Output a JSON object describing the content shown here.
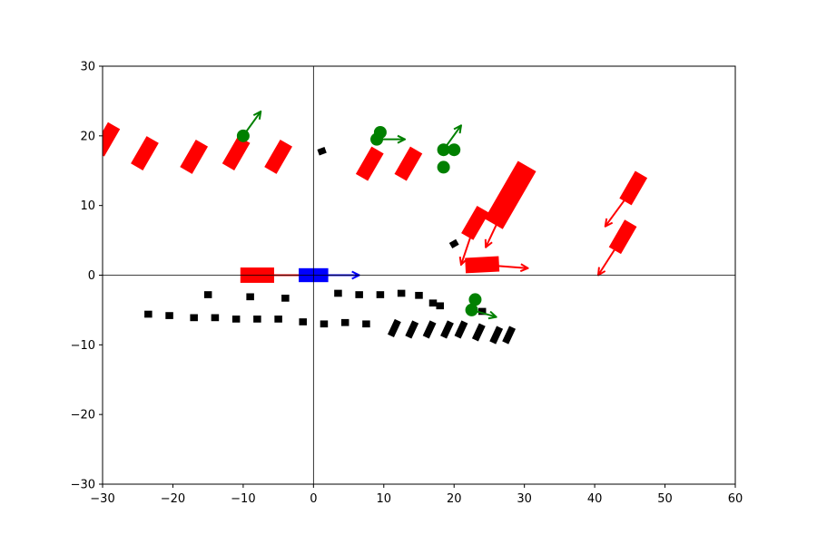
{
  "chart_data": {
    "type": "scatter",
    "title": "",
    "xlabel": "",
    "ylabel": "",
    "xlim": [
      -30,
      60
    ],
    "ylim": [
      -30,
      30
    ],
    "xticks": [
      -30,
      -20,
      -10,
      0,
      10,
      20,
      30,
      40,
      50,
      60
    ],
    "yticks": [
      -30,
      -20,
      -10,
      0,
      10,
      20,
      30
    ],
    "xtick_labels": [
      "−30",
      "−20",
      "−10",
      "0",
      "10",
      "20",
      "30",
      "40",
      "50",
      "60"
    ],
    "ytick_labels": [
      "−30",
      "−20",
      "−10",
      "0",
      "10",
      "20",
      "30"
    ],
    "grid": false,
    "axis_lines_at_zero": true,
    "colors": {
      "ego": "#0000ff",
      "vehicle": "#ff0000",
      "pedestrian": "#008000",
      "static": "#000000",
      "axes": "#000000"
    },
    "ego": {
      "x": 0,
      "y": 0,
      "len": 4.2,
      "wid": 2.0,
      "angle": 0,
      "arrow": [
        6.5,
        0
      ]
    },
    "vehicles": [
      {
        "x": -29.5,
        "y": 19.5,
        "len": 4.5,
        "wid": 2.0,
        "angle": -60
      },
      {
        "x": -24,
        "y": 17.5,
        "len": 4.5,
        "wid": 2.0,
        "angle": -60
      },
      {
        "x": -17,
        "y": 17,
        "len": 4.5,
        "wid": 2.0,
        "angle": -60
      },
      {
        "x": -11,
        "y": 17.5,
        "len": 4.5,
        "wid": 2.0,
        "angle": -60
      },
      {
        "x": -5,
        "y": 17,
        "len": 4.5,
        "wid": 2.0,
        "angle": -60
      },
      {
        "x": 8,
        "y": 16,
        "len": 4.5,
        "wid": 2.0,
        "angle": -60
      },
      {
        "x": 13.5,
        "y": 16,
        "len": 4.5,
        "wid": 2.0,
        "angle": -60
      },
      {
        "x": -8,
        "y": 0,
        "len": 4.8,
        "wid": 2.2,
        "angle": 0,
        "arrow": [
          -0.5,
          0
        ]
      },
      {
        "x": 24,
        "y": 1.5,
        "len": 4.8,
        "wid": 2.2,
        "angle": -3,
        "arrow": [
          30.5,
          1
        ]
      },
      {
        "x": 23,
        "y": 7.5,
        "len": 4.5,
        "wid": 2.0,
        "angle": -60,
        "arrow": [
          21,
          1.5
        ]
      },
      {
        "x": 28,
        "y": 11.5,
        "len": 9.5,
        "wid": 3.0,
        "angle": -60,
        "arrow": [
          24.5,
          4
        ]
      },
      {
        "x": 45.5,
        "y": 12.5,
        "len": 4.5,
        "wid": 2.0,
        "angle": -60,
        "arrow": [
          41.5,
          7
        ]
      },
      {
        "x": 44,
        "y": 5.5,
        "len": 4.5,
        "wid": 2.0,
        "angle": -60,
        "arrow": [
          40.5,
          0
        ]
      }
    ],
    "pedestrians": [
      {
        "x": -10,
        "y": 20,
        "arrow": [
          -7.5,
          23.5
        ]
      },
      {
        "x": 9.5,
        "y": 20.5
      },
      {
        "x": 9,
        "y": 19.5,
        "arrow": [
          13,
          19.5
        ]
      },
      {
        "x": 18.5,
        "y": 18,
        "arrow": [
          21,
          21.5
        ]
      },
      {
        "x": 20,
        "y": 18
      },
      {
        "x": 18.5,
        "y": 15.5
      },
      {
        "x": 23,
        "y": -3.5
      },
      {
        "x": 22.5,
        "y": -5,
        "arrow": [
          26,
          -6
        ]
      }
    ],
    "static_objects": [
      {
        "x": 1.2,
        "y": 17.8,
        "len": 1.1,
        "wid": 0.9,
        "angle": -20
      },
      {
        "x": 20,
        "y": 4.5,
        "len": 1.1,
        "wid": 0.9,
        "angle": -30
      },
      {
        "x": -15,
        "y": -2.8,
        "len": 1.1,
        "wid": 1.0,
        "angle": 0
      },
      {
        "x": -9,
        "y": -3.1,
        "len": 1.1,
        "wid": 1.0,
        "angle": 0
      },
      {
        "x": -4,
        "y": -3.3,
        "len": 1.1,
        "wid": 1.0,
        "angle": 0
      },
      {
        "x": 3.5,
        "y": -2.6,
        "len": 1.1,
        "wid": 1.0,
        "angle": 0
      },
      {
        "x": 6.5,
        "y": -2.8,
        "len": 1.1,
        "wid": 1.0,
        "angle": 0
      },
      {
        "x": 9.5,
        "y": -2.8,
        "len": 1.1,
        "wid": 1.0,
        "angle": 0
      },
      {
        "x": 12.5,
        "y": -2.6,
        "len": 1.1,
        "wid": 1.0,
        "angle": 0
      },
      {
        "x": 15,
        "y": -2.9,
        "len": 1.1,
        "wid": 1.0,
        "angle": 0
      },
      {
        "x": 17,
        "y": -4,
        "len": 1.1,
        "wid": 1.0,
        "angle": 0
      },
      {
        "x": 18,
        "y": -4.4,
        "len": 1.1,
        "wid": 1.0,
        "angle": 0
      },
      {
        "x": 24,
        "y": -5.2,
        "len": 1.1,
        "wid": 1.0,
        "angle": 0
      },
      {
        "x": -23.5,
        "y": -5.6,
        "len": 1.1,
        "wid": 1.0,
        "angle": 0
      },
      {
        "x": -20.5,
        "y": -5.8,
        "len": 1.1,
        "wid": 1.0,
        "angle": 0
      },
      {
        "x": -17,
        "y": -6.1,
        "len": 1.1,
        "wid": 1.0,
        "angle": 0
      },
      {
        "x": -14,
        "y": -6.1,
        "len": 1.1,
        "wid": 1.0,
        "angle": 0
      },
      {
        "x": -11,
        "y": -6.3,
        "len": 1.1,
        "wid": 1.0,
        "angle": 0
      },
      {
        "x": -8,
        "y": -6.3,
        "len": 1.1,
        "wid": 1.0,
        "angle": 0
      },
      {
        "x": -5,
        "y": -6.3,
        "len": 1.1,
        "wid": 1.0,
        "angle": 0
      },
      {
        "x": -1.5,
        "y": -6.7,
        "len": 1.1,
        "wid": 1.0,
        "angle": 0
      },
      {
        "x": 1.5,
        "y": -7,
        "len": 1.1,
        "wid": 1.0,
        "angle": 0
      },
      {
        "x": 4.5,
        "y": -6.8,
        "len": 1.1,
        "wid": 1.0,
        "angle": 0
      },
      {
        "x": 7.5,
        "y": -7,
        "len": 1.1,
        "wid": 1.0,
        "angle": 0
      },
      {
        "x": 11.5,
        "y": -7.6,
        "len": 2.4,
        "wid": 1.0,
        "angle": -65
      },
      {
        "x": 14,
        "y": -7.8,
        "len": 2.4,
        "wid": 1.0,
        "angle": -65
      },
      {
        "x": 16.5,
        "y": -7.8,
        "len": 2.4,
        "wid": 1.0,
        "angle": -65
      },
      {
        "x": 19,
        "y": -7.8,
        "len": 2.4,
        "wid": 1.0,
        "angle": -65
      },
      {
        "x": 21,
        "y": -7.8,
        "len": 2.4,
        "wid": 1.0,
        "angle": -65
      },
      {
        "x": 23.5,
        "y": -8.2,
        "len": 2.4,
        "wid": 1.0,
        "angle": -65
      },
      {
        "x": 26,
        "y": -8.6,
        "len": 2.4,
        "wid": 1.0,
        "angle": -65
      },
      {
        "x": 27.8,
        "y": -8.6,
        "len": 2.4,
        "wid": 1.0,
        "angle": -65
      }
    ]
  }
}
